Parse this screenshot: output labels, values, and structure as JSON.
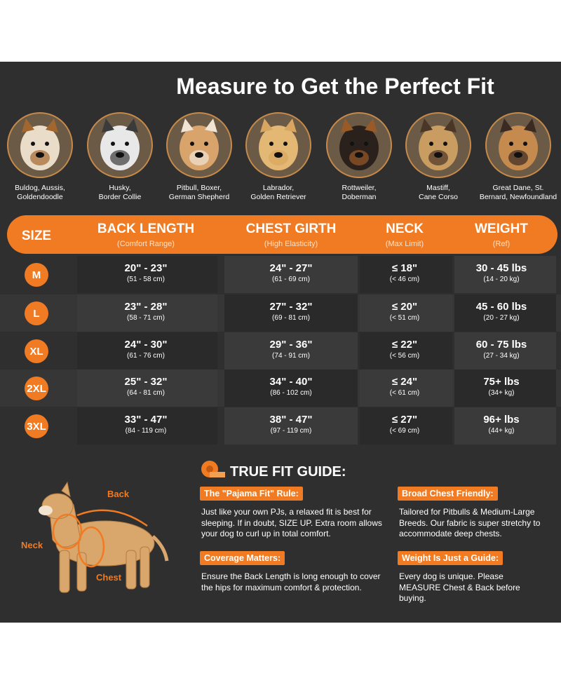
{
  "title": "Measure to Get the Perfect Fit",
  "breeds": [
    "Buldog, Aussis,\nGoldendoodle",
    "Husky,\nBorder Collie",
    "Pitbull, Boxer,\nGerman Shepherd",
    "Labrador,\nGolden Retriever",
    "Rottweiler,\nDoberman",
    "Mastiff,\nCane Corso",
    "Great Dane, St.\nBernard, Newfoundland"
  ],
  "table": {
    "size_header": "SIZE",
    "columns": [
      {
        "title": "BACK LENGTH",
        "note": "(Comfort Range)"
      },
      {
        "title": "CHEST GIRTH",
        "note": "(High Elasticity)"
      },
      {
        "title": "NECK",
        "note": "(Max Limit)"
      },
      {
        "title": "WEIGHT",
        "note": "(Ref)"
      }
    ],
    "rows": [
      {
        "size": "M",
        "cells": [
          [
            "20\" - 23\"",
            "(51 - 58 cm)"
          ],
          [
            "24\" - 27\"",
            "(61 - 69 cm)"
          ],
          [
            "≤ 18\"",
            "(< 46 cm)"
          ],
          [
            "30 - 45 lbs",
            "(14 - 20 kg)"
          ]
        ]
      },
      {
        "size": "L",
        "cells": [
          [
            "23\" - 28\"",
            "(58 - 71 cm)"
          ],
          [
            "27\" - 32\"",
            "(69 - 81 cm)"
          ],
          [
            "≤ 20\"",
            "(< 51 cm)"
          ],
          [
            "45 - 60 lbs",
            "(20 - 27 kg)"
          ]
        ]
      },
      {
        "size": "XL",
        "cells": [
          [
            "24\" - 30\"",
            "(61 - 76 cm)"
          ],
          [
            "29\" - 36\"",
            "(74 - 91 cm)"
          ],
          [
            "≤ 22\"",
            "(< 56 cm)"
          ],
          [
            "60 - 75 lbs",
            "(27 - 34 kg)"
          ]
        ]
      },
      {
        "size": "2XL",
        "cells": [
          [
            "25\" - 32\"",
            "(64 - 81 cm)"
          ],
          [
            "34\" - 40\"",
            "(86 - 102 cm)"
          ],
          [
            "≤ 24\"",
            "(< 61 cm)"
          ],
          [
            "75+ lbs",
            "(34+ kg)"
          ]
        ]
      },
      {
        "size": "3XL",
        "cells": [
          [
            "33\" - 47\"",
            "(84 - 119 cm)"
          ],
          [
            "38\" - 47\"",
            "(97 - 119 cm)"
          ],
          [
            "≤ 27\"",
            "(< 69 cm)"
          ],
          [
            "96+ lbs",
            "(44+ kg)"
          ]
        ]
      }
    ]
  },
  "diagram": {
    "back": "Back",
    "neck": "Neck",
    "chest": "Chest"
  },
  "guide": {
    "title": "TRUE FIT GUIDE:",
    "items": [
      {
        "heading": "The \"Pajama Fit\" Rule:",
        "body": "Just like your own PJs, a relaxed fit is best for sleeping. If in doubt, SIZE UP. Extra room allows your dog to curl up in total comfort."
      },
      {
        "heading": "Broad Chest Friendly:",
        "body": "Tailored for Pitbulls & Medium-Large Breeds. Our fabric is super stretchy to accommodate deep chests."
      },
      {
        "heading": "Coverage Matters:",
        "body": "Ensure the Back Length is long enough to cover the hips for maximum comfort & protection."
      },
      {
        "heading": "Weight Is Just a Guide:",
        "body": "Every dog is unique. Please MEASURE Chest & Back before buying."
      }
    ]
  }
}
